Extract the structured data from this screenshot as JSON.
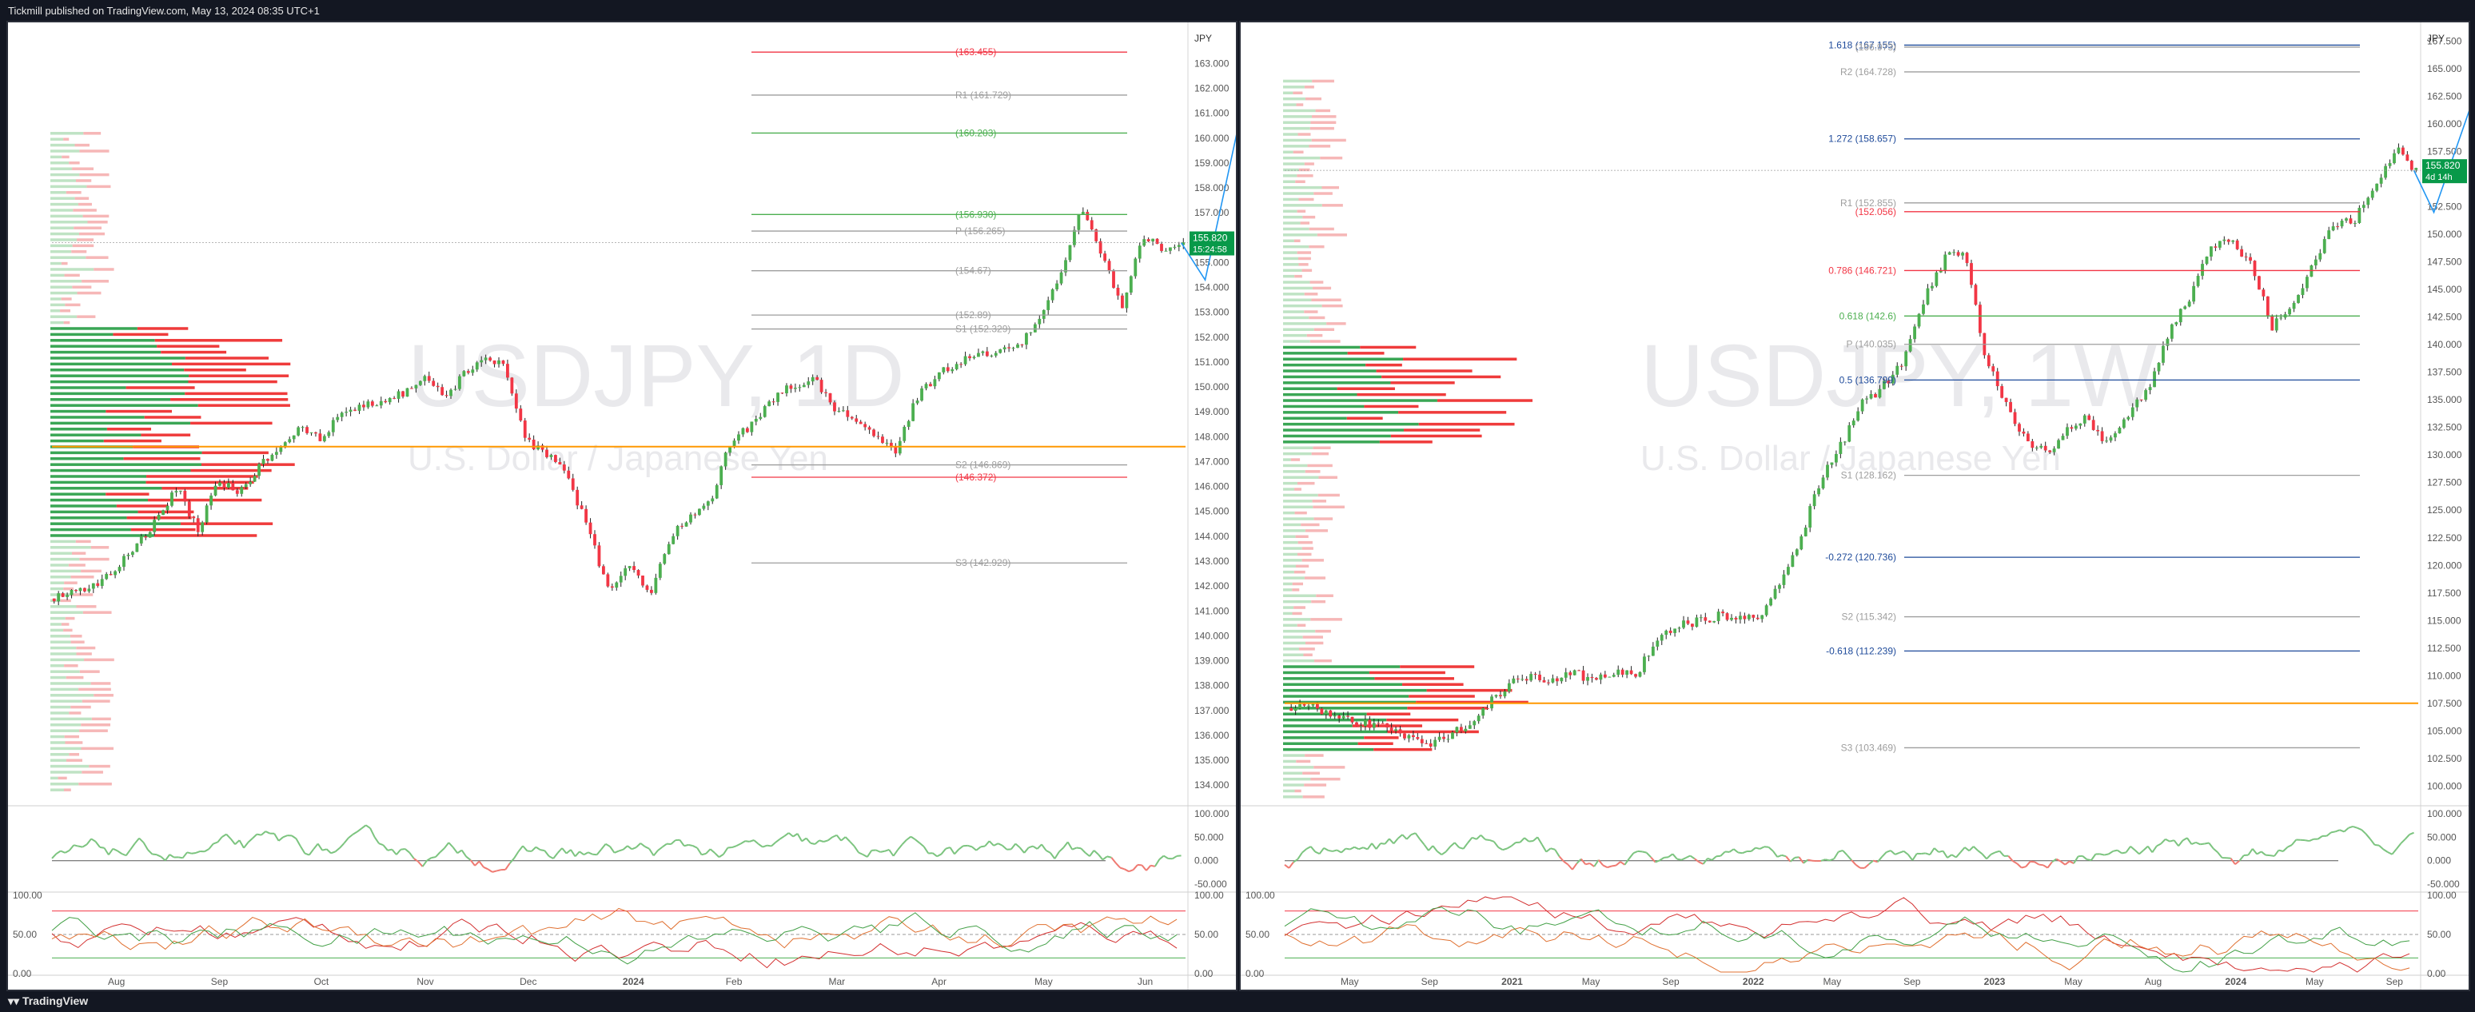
{
  "header": {
    "publisher_line": "Tickmill published on TradingView.com, May 13, 2024 08:35 UTC+1"
  },
  "footer": {
    "brand": "TradingView"
  },
  "colors": {
    "bull": "#4caf50",
    "bear": "#f23645",
    "pivot": "#9e9e9e",
    "fib": "#1e4a9a",
    "orange": "#ff9800",
    "magenta": "#d500f9",
    "forecast": "#2196f3",
    "background": "#ffffff"
  },
  "chart_data": [
    {
      "type": "candlestick",
      "symbol_watermark": "USDJPY, 1D",
      "description_watermark": "U.S. Dollar / Japanese Yen",
      "currency": "JPY",
      "last_price": "155.820",
      "countdown": "15:24:58",
      "ylim": [
        133.3,
        164.2
      ],
      "y_ticks": [
        "163.000",
        "162.000",
        "161.000",
        "160.000",
        "159.000",
        "158.000",
        "157.000",
        "156.000",
        "155.000",
        "154.000",
        "153.000",
        "152.000",
        "151.000",
        "150.000",
        "149.000",
        "148.000",
        "147.000",
        "146.000",
        "145.000",
        "144.000",
        "143.000",
        "142.000",
        "141.000",
        "140.000",
        "139.000",
        "138.000",
        "137.000",
        "136.000",
        "135.000",
        "134.000"
      ],
      "x_ticks": [
        "Aug",
        "Sep",
        "Oct",
        "Nov",
        "Dec",
        "2024",
        "Feb",
        "Mar",
        "Apr",
        "May",
        "Jun"
      ],
      "levels": [
        {
          "label": "(163.455)",
          "value": 163.455,
          "color": "#f23645"
        },
        {
          "label": "R1 (161.729)",
          "value": 161.729,
          "color": "#9e9e9e"
        },
        {
          "label": "(160.203)",
          "value": 160.203,
          "color": "#4caf50"
        },
        {
          "label": "(156.930)",
          "value": 156.93,
          "color": "#4caf50"
        },
        {
          "label": "P (156.265)",
          "value": 156.265,
          "color": "#9e9e9e"
        },
        {
          "label": "(154.67)",
          "value": 154.67,
          "color": "#9e9e9e"
        },
        {
          "label": "(152.89)",
          "value": 152.89,
          "color": "#9e9e9e"
        },
        {
          "label": "S1 (152.329)",
          "value": 152.329,
          "color": "#9e9e9e"
        },
        {
          "label": "S2 (146.869)",
          "value": 146.869,
          "color": "#9e9e9e"
        },
        {
          "label": "(146.372)",
          "value": 146.372,
          "color": "#f23645"
        },
        {
          "label": "S3 (142.929)",
          "value": 142.929,
          "color": "#9e9e9e"
        }
      ],
      "close_path": [
        141.5,
        141.8,
        142.0,
        142.8,
        143.6,
        144.7,
        145.9,
        144.3,
        146.2,
        145.8,
        146.8,
        147.6,
        148.4,
        147.9,
        148.9,
        149.2,
        149.5,
        149.8,
        150.3,
        149.6,
        150.5,
        151.3,
        150.7,
        147.8,
        147.3,
        146.4,
        144.3,
        141.8,
        142.9,
        141.5,
        143.9,
        144.9,
        145.5,
        147.9,
        148.5,
        149.5,
        150.1,
        150.3,
        149.2,
        148.6,
        148.1,
        147.5,
        149.5,
        150.5,
        151.0,
        151.3,
        151.4,
        151.6,
        152.8,
        154.5,
        157.2,
        155.4,
        153.2,
        156.1,
        155.5,
        155.8
      ],
      "oscillator_ticks": [
        "100.000",
        "50.000",
        "0.000",
        "-50.000"
      ],
      "stoch_ticks": [
        "100.00",
        "50.00",
        "0.00"
      ]
    },
    {
      "type": "candlestick",
      "symbol_watermark": "USDJPY, 1W",
      "description_watermark": "U.S. Dollar / Japanese Yen",
      "currency": "JPY",
      "last_price": "155.820",
      "countdown": "4d 14h",
      "ylim": [
        98.5,
        168.2
      ],
      "y_ticks": [
        "167.500",
        "165.000",
        "162.500",
        "160.000",
        "157.500",
        "155.000",
        "152.500",
        "150.000",
        "147.500",
        "145.000",
        "142.500",
        "140.000",
        "137.500",
        "135.000",
        "132.500",
        "130.000",
        "127.500",
        "125.000",
        "122.500",
        "120.000",
        "117.500",
        "115.000",
        "112.500",
        "110.000",
        "107.500",
        "105.000",
        "102.500",
        "100.000"
      ],
      "x_ticks": [
        "May",
        "Sep",
        "2021",
        "May",
        "Sep",
        "2022",
        "May",
        "Sep",
        "2023",
        "May",
        "Aug",
        "2024",
        "May",
        "Sep"
      ],
      "levels": [
        {
          "label": "1.618 (167.155)",
          "value": 167.155,
          "color": "#1e4a9a"
        },
        {
          "label": "(166.973)",
          "value": 166.973,
          "color": "#9e9e9e"
        },
        {
          "label": "R2 (164.728)",
          "value": 164.728,
          "color": "#9e9e9e"
        },
        {
          "label": "1.272 (158.657)",
          "value": 158.657,
          "color": "#1e4a9a"
        },
        {
          "label": "R1 (152.855)",
          "value": 152.855,
          "color": "#9e9e9e"
        },
        {
          "label": "(152.056)",
          "value": 152.056,
          "color": "#f23645"
        },
        {
          "label": "0.786 (146.721)",
          "value": 146.721,
          "color": "#f23645"
        },
        {
          "label": "0.618 (142.6)",
          "value": 142.6,
          "color": "#4caf50"
        },
        {
          "label": "P (140.035)",
          "value": 140.035,
          "color": "#9e9e9e"
        },
        {
          "label": "0.5 (136.799)",
          "value": 136.799,
          "color": "#1e4a9a"
        },
        {
          "label": "S1 (128.162)",
          "value": 128.162,
          "color": "#9e9e9e"
        },
        {
          "label": "-0.272 (120.736)",
          "value": 120.736,
          "color": "#1e4a9a"
        },
        {
          "label": "S2 (115.342)",
          "value": 115.342,
          "color": "#9e9e9e"
        },
        {
          "label": "-0.618 (112.239)",
          "value": 112.239,
          "color": "#1e4a9a"
        },
        {
          "label": "S3 (103.469)",
          "value": 103.469,
          "color": "#9e9e9e"
        }
      ],
      "close_path": [
        107.0,
        107.3,
        106.5,
        105.9,
        105.6,
        105.2,
        104.4,
        103.8,
        104.6,
        105.8,
        107.9,
        109.4,
        109.8,
        109.6,
        110.2,
        109.6,
        110.4,
        110.1,
        113.1,
        114.6,
        114.9,
        115.4,
        115.0,
        115.4,
        118.2,
        122.3,
        127.9,
        130.9,
        134.6,
        136.1,
        138.4,
        143.9,
        147.7,
        148.7,
        139.1,
        134.8,
        131.4,
        130.2,
        132.2,
        133.4,
        130.9,
        133.8,
        136.3,
        141.5,
        144.4,
        148.9,
        149.6,
        147.1,
        141.6,
        143.7,
        147.4,
        150.9,
        151.3,
        154.3,
        157.8,
        155.8
      ],
      "oscillator_ticks": [
        "100.000",
        "50.000",
        "0.000",
        "-50.000"
      ],
      "stoch_ticks": [
        "100.00",
        "50.00",
        "0.00"
      ]
    }
  ]
}
